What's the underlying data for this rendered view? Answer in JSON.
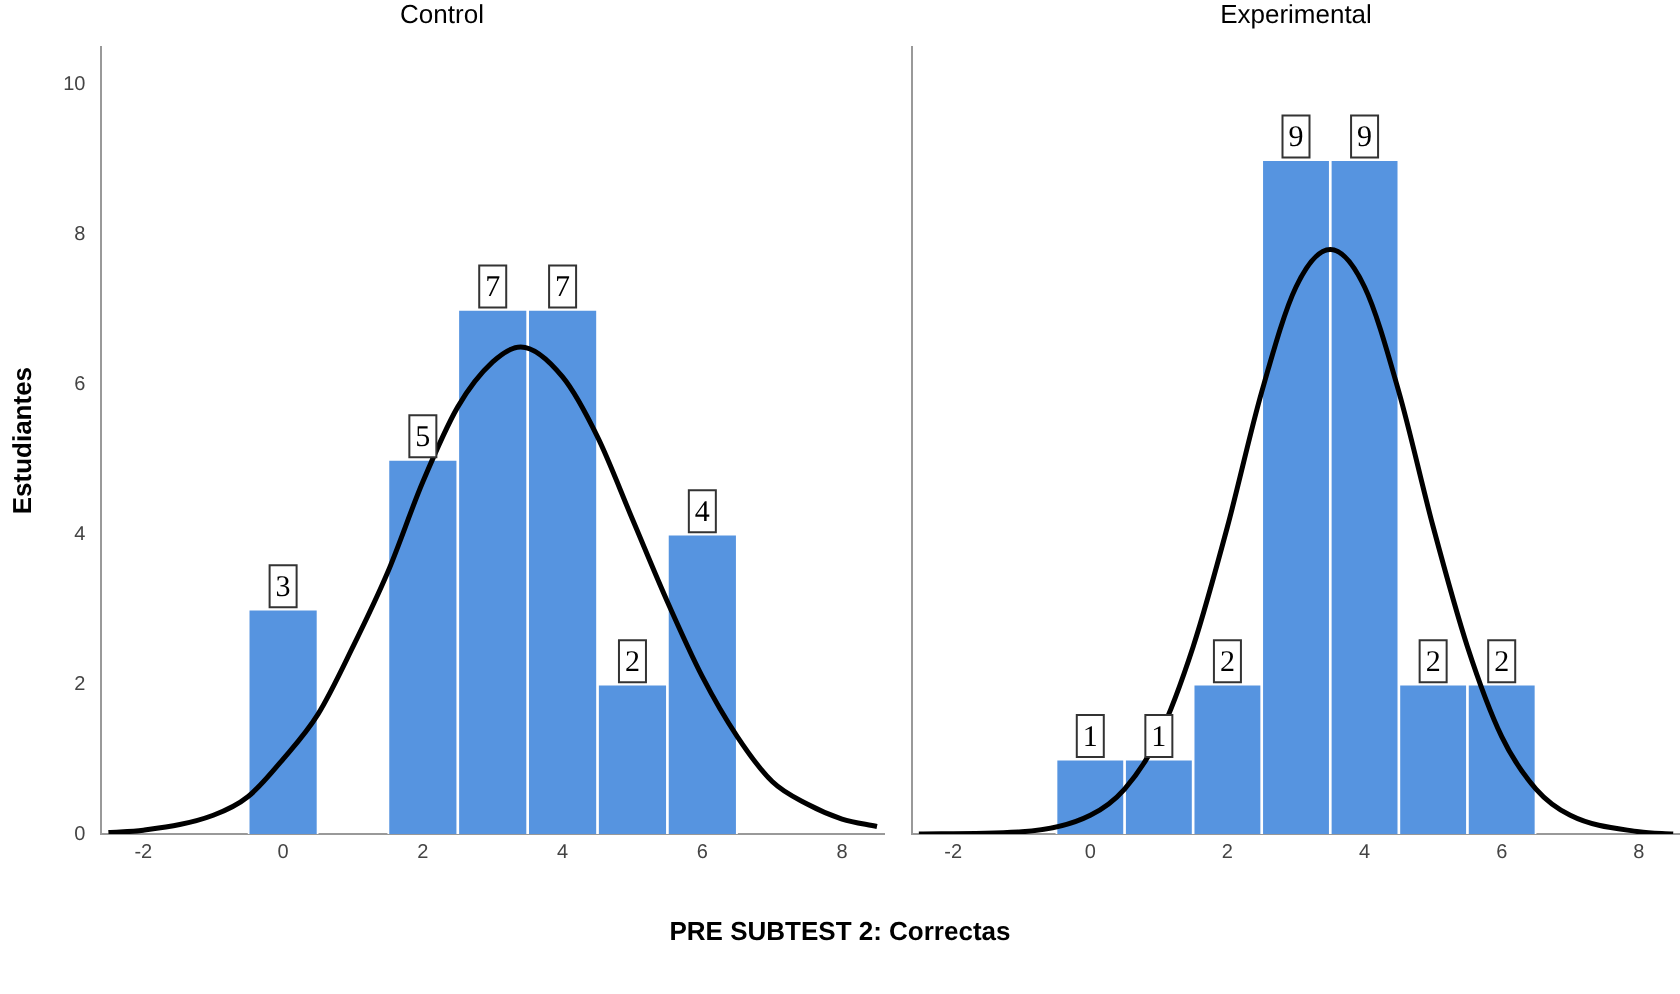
{
  "chart_data": [
    {
      "type": "histogram",
      "title": "Control",
      "xlabel": "PRE SUBTEST 2: Correctas",
      "ylabel": "Estudiantes",
      "bins": [
        -0.5,
        0.5,
        1.5,
        2.5,
        3.5,
        4.5,
        5.5,
        6.5
      ],
      "values": [
        3,
        0,
        5,
        7,
        7,
        2,
        4
      ],
      "value_labels": [
        "3",
        null,
        "5",
        "7",
        "7",
        "2",
        "4"
      ],
      "color": "#5694e0",
      "xlim": [
        -2.6,
        8.6
      ],
      "xticks": [
        -2,
        0,
        2,
        4,
        6,
        8
      ],
      "ylim": [
        0,
        10.5
      ],
      "yticks": [
        0,
        2,
        4,
        6,
        8,
        10
      ],
      "series": [
        {
          "type": "line",
          "color": "#000000",
          "x": [
            -2.5,
            -2,
            -1,
            -0.5,
            0,
            0.5,
            1,
            1.5,
            2,
            2.5,
            3,
            3.4,
            4,
            4.5,
            5,
            5.5,
            6,
            6.5,
            7,
            7.5,
            8,
            8.5
          ],
          "values": [
            0.02,
            0.05,
            0.25,
            0.5,
            1.0,
            1.6,
            2.5,
            3.5,
            4.7,
            5.7,
            6.3,
            6.5,
            6.1,
            5.3,
            4.2,
            3.1,
            2.1,
            1.3,
            0.7,
            0.4,
            0.2,
            0.1
          ]
        }
      ]
    },
    {
      "type": "histogram",
      "title": "Experimental",
      "bins": [
        -0.5,
        0.5,
        1.5,
        2.5,
        3.5,
        4.5,
        5.5,
        6.5
      ],
      "values": [
        1,
        1,
        2,
        9,
        9,
        2,
        2
      ],
      "value_labels": [
        "1",
        "1",
        "2",
        "9",
        "9",
        "2",
        "2"
      ],
      "color": "#5694e0",
      "xlim": [
        -2.6,
        8.6
      ],
      "xticks": [
        -2,
        0,
        2,
        4,
        6,
        8
      ],
      "ylim": [
        0,
        10.5
      ],
      "yticks": [
        0,
        2,
        4,
        6,
        8,
        10
      ],
      "tick_labels": "x",
      "series": [
        {
          "type": "line",
          "color": "#000000",
          "x": [
            -2.5,
            -1,
            0,
            0.5,
            1,
            1.5,
            2,
            2.5,
            3,
            3.5,
            4,
            4.5,
            5,
            5.5,
            6,
            6.5,
            7,
            8,
            8.5
          ],
          "values": [
            0,
            0.03,
            0.25,
            0.6,
            1.3,
            2.5,
            4.1,
            5.9,
            7.3,
            7.8,
            7.3,
            5.9,
            4.1,
            2.5,
            1.3,
            0.6,
            0.25,
            0.03,
            0
          ]
        }
      ]
    }
  ]
}
